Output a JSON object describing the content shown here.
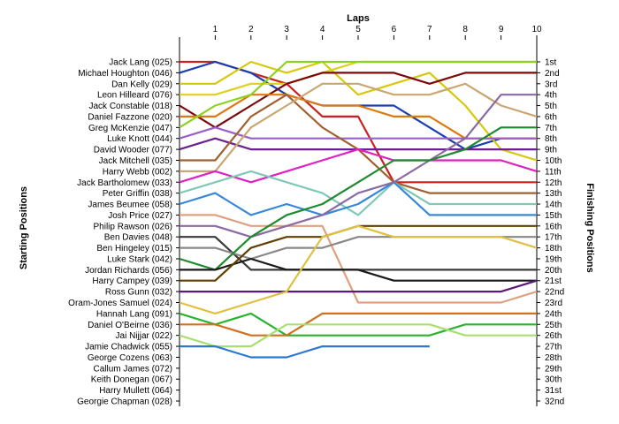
{
  "chart_data": {
    "type": "line",
    "subtype": "lap-position-chart",
    "title": "Laps",
    "ylabel_left": "Starting Positions",
    "ylabel_right": "Finishing Positions",
    "x_ticks": [
      "1",
      "2",
      "3",
      "4",
      "5",
      "6",
      "7",
      "8",
      "9",
      "10"
    ],
    "x_range": [
      0,
      10
    ],
    "y_range": [
      1,
      32
    ],
    "y_reversed": true,
    "grid": false,
    "starting_labels": [
      "Jack Lang (025)",
      "Michael Houghton (046)",
      "Dan Kelly (029)",
      "Leon Hilleard (076)",
      "Jack Constable (018)",
      "Daniel Fazzone (020)",
      "Greg McKenzie (047)",
      "Luke Knott (044)",
      "David Wooder (077)",
      "Jack Mitchell (035)",
      "Harry Webb (002)",
      "Jack Bartholomew (033)",
      "Peter Griffin (038)",
      "James Beumee (058)",
      "Josh Price (027)",
      "Philip Rawson (026)",
      "Ben Davies (048)",
      "Ben Hingeley (015)",
      "Luke Stark (042)",
      "Jordan Richards (056)",
      "Harry Campey (039)",
      "Ross Gunn (032)",
      "Oram-Jones Samuel (024)",
      "Hannah Lang (091)",
      "Daniel O'Beirne (036)",
      "Jai Nijjar (022)",
      "Jamie Chadwick (055)",
      "George Cozens (063)",
      "Callum James (072)",
      "Keith Donegan (067)",
      "Harry Mullett (064)",
      "Georgie Chapman (028)"
    ],
    "finishing_labels": [
      "1st",
      "2nd",
      "3rd",
      "4th",
      "5th",
      "6th",
      "7th",
      "8th",
      "9th",
      "10th",
      "11th",
      "12th",
      "13th",
      "14th",
      "15th",
      "16th",
      "17th",
      "18th",
      "19th",
      "20th",
      "21st",
      "22nd",
      "23rd",
      "24th",
      "25th",
      "26th",
      "27th",
      "28th",
      "29th",
      "30th",
      "31st",
      "32nd"
    ],
    "series": [
      {
        "color": "#cc2020",
        "values": [
          1,
          2,
          3,
          6,
          6,
          12,
          12,
          12,
          12,
          12
        ]
      },
      {
        "color": "#1a3fb0",
        "values": [
          1,
          2,
          4,
          5,
          5,
          5,
          7,
          9,
          8,
          8
        ]
      },
      {
        "color": "#d8c80c",
        "values": [
          3,
          1,
          2,
          1,
          4,
          3,
          2,
          5,
          9,
          10
        ]
      },
      {
        "color": "#ddd020",
        "values": [
          4,
          3,
          3,
          2,
          1,
          1,
          1,
          1,
          1,
          1
        ]
      },
      {
        "color": "#7a0a0a",
        "values": [
          7,
          5,
          3,
          2,
          2,
          2,
          3,
          2,
          2,
          2
        ]
      },
      {
        "color": "#e07810",
        "values": [
          6,
          4,
          4,
          5,
          5,
          6,
          6,
          8,
          8,
          8
        ]
      },
      {
        "color": "#8cd220",
        "values": [
          5,
          4,
          1,
          1,
          1,
          1,
          1,
          1,
          1,
          1
        ]
      },
      {
        "color": "#9a60c8",
        "values": [
          7,
          8,
          8,
          8,
          8,
          8,
          8,
          8,
          8,
          8
        ]
      },
      {
        "color": "#6a2090",
        "values": [
          8,
          9,
          9,
          9,
          9,
          9,
          9,
          9,
          9,
          9
        ]
      },
      {
        "color": "#a06030",
        "values": [
          10,
          6,
          4,
          7,
          9,
          12,
          13,
          13,
          13,
          13
        ]
      },
      {
        "color": "#c8a870",
        "values": [
          11,
          7,
          5,
          3,
          3,
          4,
          4,
          3,
          5,
          6
        ]
      },
      {
        "color": "#e020c0",
        "values": [
          11,
          12,
          11,
          10,
          9,
          10,
          10,
          10,
          10,
          11
        ]
      },
      {
        "color": "#80c8b8",
        "values": [
          12,
          11,
          12,
          13,
          15,
          12,
          14,
          14,
          14,
          14
        ]
      },
      {
        "color": "#3888d8",
        "values": [
          13,
          15,
          14,
          15,
          14,
          12,
          15,
          15,
          15,
          15
        ]
      },
      {
        "color": "#e0a080",
        "values": [
          15,
          16,
          16,
          16,
          23,
          23,
          23,
          23,
          23,
          22
        ]
      },
      {
        "color": "#8a6aa0",
        "values": [
          16,
          17,
          16,
          15,
          13,
          12,
          10,
          8,
          4,
          4
        ]
      },
      {
        "color": "#3a3a3a",
        "values": [
          17,
          20,
          20,
          20,
          20,
          20,
          20,
          20,
          20,
          20
        ]
      },
      {
        "color": "#888888",
        "values": [
          18,
          19,
          18,
          18,
          17,
          17,
          17,
          17,
          17,
          17
        ]
      },
      {
        "color": "#1e8a2e",
        "values": [
          20,
          17,
          15,
          14,
          12,
          10,
          10,
          9,
          7,
          7
        ]
      },
      {
        "color": "#1a1a1a",
        "values": [
          20,
          19,
          20,
          20,
          20,
          21,
          21,
          21,
          21,
          21
        ]
      },
      {
        "color": "#604000",
        "values": [
          21,
          18,
          17,
          17,
          16,
          16,
          16,
          16,
          16,
          16
        ]
      },
      {
        "color": "#5a1a7a",
        "values": [
          22,
          22,
          22,
          22,
          22,
          22,
          22,
          22,
          22,
          21
        ]
      },
      {
        "color": "#e0c040",
        "values": [
          24,
          23,
          22,
          17,
          16,
          17,
          17,
          17,
          17,
          18
        ]
      },
      {
        "color": "#2bb32e",
        "values": [
          25,
          24,
          26,
          26,
          26,
          26,
          26,
          25,
          25,
          25
        ]
      },
      {
        "color": "#d07020",
        "values": [
          25,
          26,
          26,
          24,
          24,
          24,
          24,
          24,
          24,
          24
        ]
      },
      {
        "color": "#a8e070",
        "values": [
          27,
          27,
          25,
          25,
          25,
          25,
          25,
          26,
          26,
          26
        ]
      },
      {
        "color": "#2e78d0",
        "values": [
          27,
          28,
          28,
          27,
          27,
          27,
          27
        ]
      }
    ]
  }
}
